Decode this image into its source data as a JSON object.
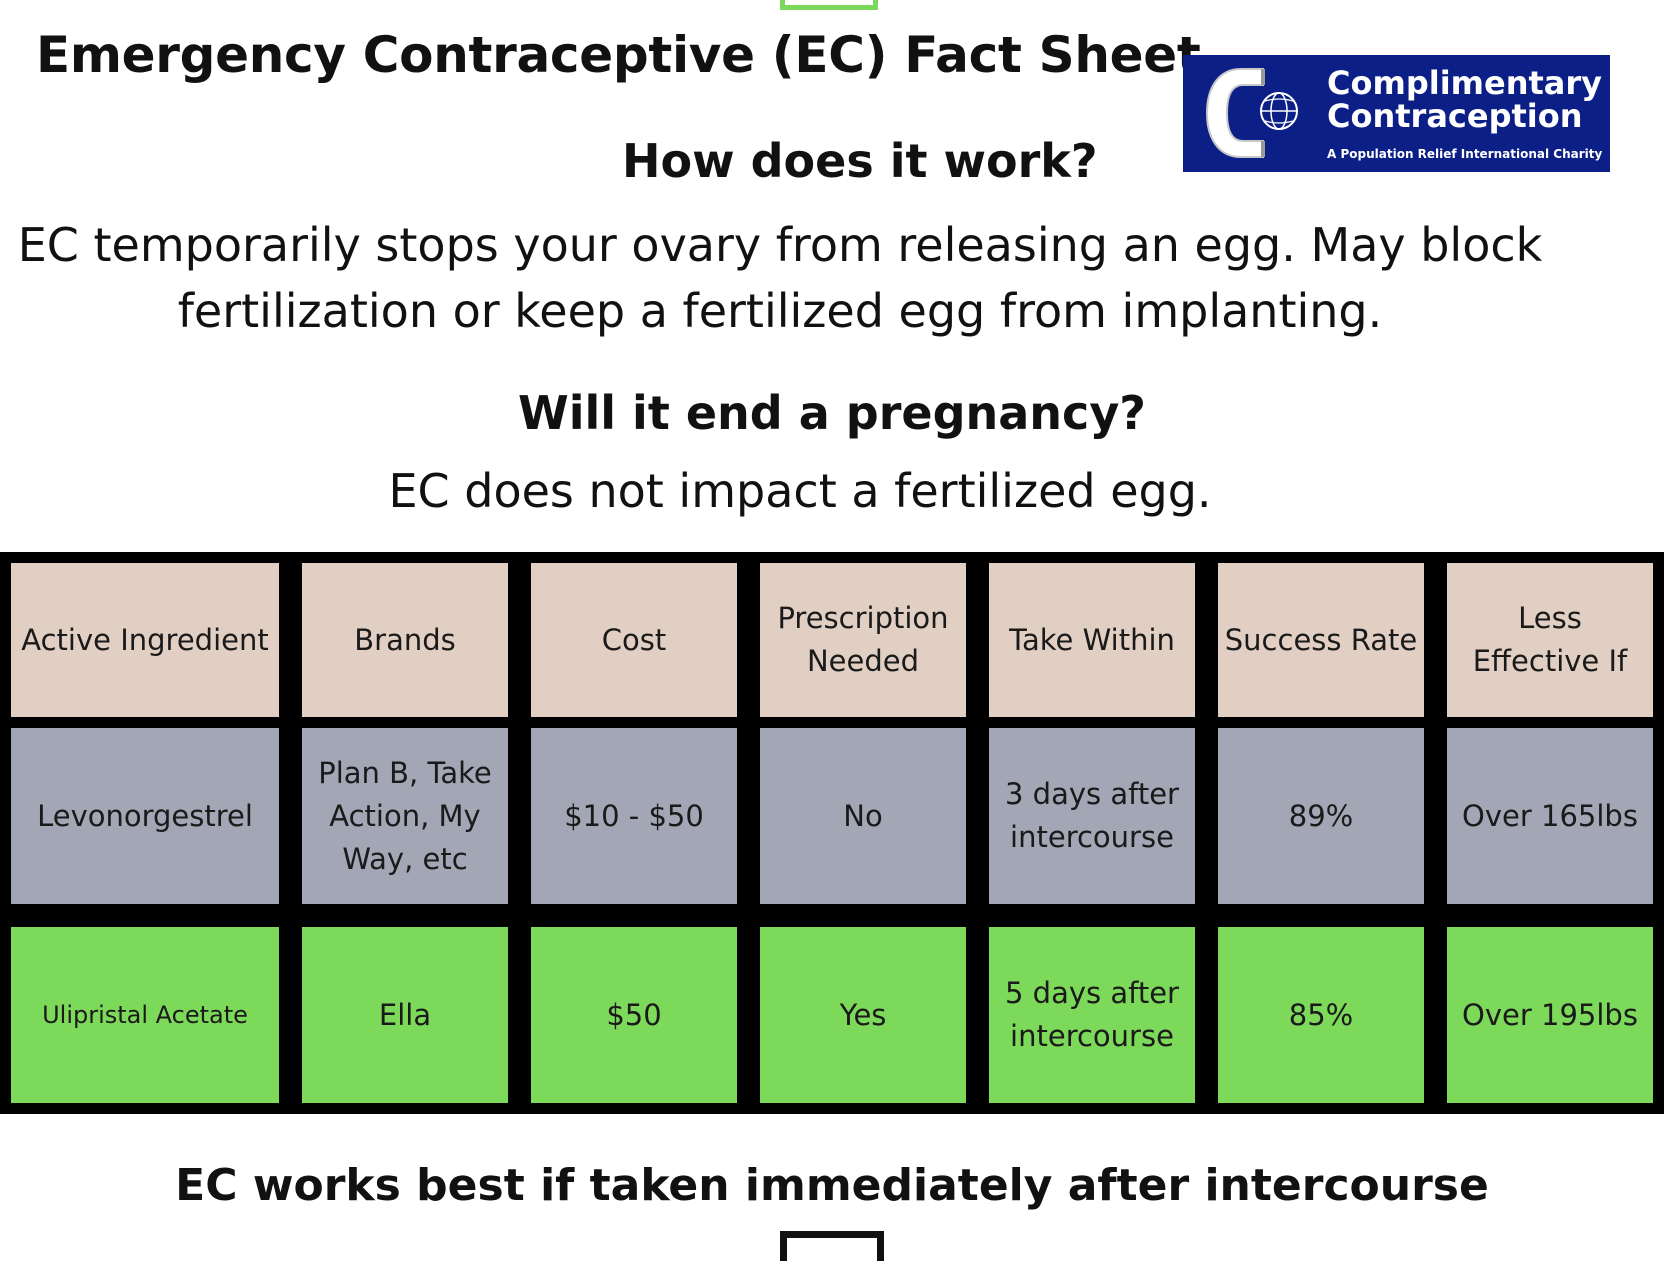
{
  "title": "Emergency Contraceptive (EC) Fact Sheet",
  "logo": {
    "name_line1": "Complimentary",
    "name_line2": "Contraception",
    "tagline": "A Population Relief International Charity"
  },
  "section1": {
    "heading": "How does it work?",
    "text_line1": "EC temporarily stops your ovary from releasing an egg. May block",
    "text_line2": "fertilization or keep a fertilized egg from implanting."
  },
  "section2": {
    "heading": "Will it end a pregnancy?",
    "text": "EC does not impact a fertilized egg."
  },
  "table": {
    "headers": [
      "Active Ingredient",
      "Brands",
      "Cost",
      "Prescription Needed",
      "Take Within",
      "Success Rate",
      "Less Effective If"
    ],
    "rows": [
      [
        "Levonorgestrel",
        "Plan B, Take Action, My Way, etc",
        "$10 - $50",
        "No",
        "3 days after intercourse",
        "89%",
        "Over 165lbs"
      ],
      [
        "Ulipristal Acetate",
        "Ella",
        "$50",
        "Yes",
        "5 days after intercourse",
        "85%",
        "Over 195lbs"
      ]
    ]
  },
  "footer": "EC works best if taken immediately after intercourse",
  "colors": {
    "header_cell": "#e1cfc3",
    "row1_cell": "#a3a6b5",
    "row2_cell": "#7dd959",
    "logo_bg": "#0b1f86"
  }
}
